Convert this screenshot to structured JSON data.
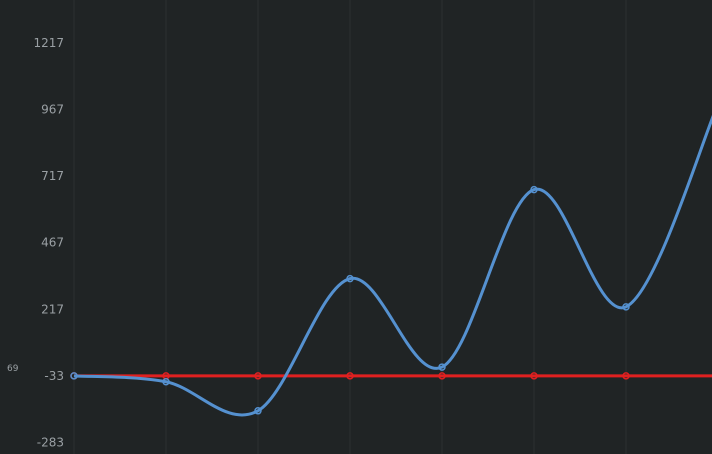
{
  "chart_data": {
    "type": "line",
    "x": [
      0,
      1,
      2,
      3,
      4,
      5,
      6,
      7
    ],
    "ylim": [
      -283,
      1340
    ],
    "y_ticks": [
      -283,
      -33,
      217,
      467,
      717,
      967,
      1217
    ],
    "y_tick_labels": [
      "-283",
      "-33",
      "217",
      "467",
      "717",
      "967",
      "1217"
    ],
    "side_label": "69",
    "grid": true,
    "series": [
      {
        "values": [
          -33,
          -55,
          -164,
          332,
          0,
          666,
          226,
          987
        ],
        "color": "#5591d0",
        "marker": "circle"
      },
      {
        "values": [
          -33,
          -33,
          -33,
          -33,
          -33,
          -33,
          -33,
          -33
        ],
        "color": "#e02020",
        "marker": "circle"
      }
    ],
    "colors": {
      "background": "#202425",
      "grid": "#2b3031",
      "tick_text": "#9aa0a4"
    }
  }
}
